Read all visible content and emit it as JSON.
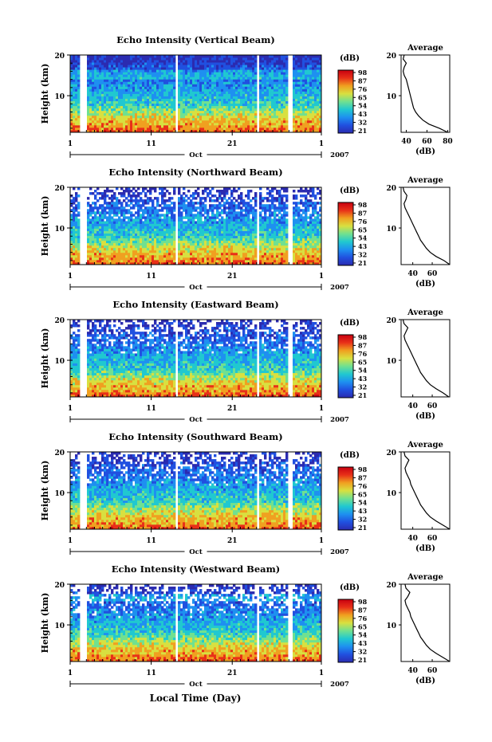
{
  "figure": {
    "xaxis_label": "Local Time (Day)",
    "month_label": "Oct",
    "year_label": "2007"
  },
  "colorbar": {
    "unit": "(dB)",
    "ticks": [
      "98",
      "87",
      "76",
      "65",
      "54",
      "43",
      "32",
      "21"
    ],
    "colors": [
      "#2b2bb0",
      "#2050e0",
      "#1e90f0",
      "#20c8d0",
      "#70e090",
      "#d8e040",
      "#f0a020",
      "#e83018",
      "#c80010"
    ]
  },
  "chart_data": [
    {
      "type": "heatmap",
      "title": "Echo Intensity (Vertical Beam)",
      "ylabel": "Height (km)",
      "xticks": [
        "1",
        "11",
        "21",
        "1"
      ],
      "yticks": [
        "20",
        "10"
      ],
      "xlim": [
        1,
        32
      ],
      "ylim": [
        1,
        20
      ],
      "colorbar_unit": "(dB)",
      "colorbar_ticks": [
        98,
        87,
        76,
        65,
        54,
        43,
        32,
        21
      ],
      "avg_profile": {
        "title": "Average",
        "xlabel": "(dB)",
        "xticks": [
          "40",
          "60",
          "80"
        ],
        "xlim": [
          35,
          82
        ],
        "height_km": [
          1,
          2,
          3,
          4,
          5,
          6,
          7,
          8,
          9,
          10,
          11,
          12,
          13,
          14,
          15,
          16,
          17,
          18,
          19,
          20
        ],
        "db": [
          80,
          72,
          62,
          56,
          52,
          49,
          47,
          46,
          45,
          44,
          43,
          42,
          41,
          40,
          38,
          37,
          38,
          40,
          37,
          38
        ]
      }
    },
    {
      "type": "heatmap",
      "title": "Echo Intensity (Northward Beam)",
      "ylabel": "Height (km)",
      "xticks": [
        "1",
        "11",
        "21",
        "1"
      ],
      "yticks": [
        "20",
        "10"
      ],
      "xlim": [
        1,
        32
      ],
      "ylim": [
        1,
        20
      ],
      "colorbar_unit": "(dB)",
      "colorbar_ticks": [
        98,
        87,
        76,
        65,
        54,
        43,
        32,
        21
      ],
      "avg_profile": {
        "title": "Average",
        "xlabel": "(dB)",
        "xticks": [
          "40",
          "60"
        ],
        "xlim": [
          28,
          78
        ],
        "height_km": [
          1,
          2,
          3,
          4,
          5,
          6,
          7,
          8,
          9,
          10,
          11,
          12,
          13,
          14,
          15,
          16,
          17,
          18,
          19,
          20
        ],
        "db": [
          78,
          72,
          64,
          58,
          54,
          51,
          48,
          46,
          44,
          42,
          40,
          38,
          36,
          34,
          32,
          31,
          33,
          34,
          31,
          30
        ]
      }
    },
    {
      "type": "heatmap",
      "title": "Echo Intensity (Eastward Beam)",
      "ylabel": "Height (km)",
      "xticks": [
        "1",
        "11",
        "21",
        "1"
      ],
      "yticks": [
        "20",
        "10"
      ],
      "xlim": [
        1,
        32
      ],
      "ylim": [
        1,
        20
      ],
      "colorbar_unit": "(dB)",
      "colorbar_ticks": [
        98,
        87,
        76,
        65,
        54,
        43,
        32,
        21
      ],
      "avg_profile": {
        "title": "Average",
        "xlabel": "(dB)",
        "xticks": [
          "40",
          "60"
        ],
        "xlim": [
          28,
          78
        ],
        "height_km": [
          1,
          2,
          3,
          4,
          5,
          6,
          7,
          8,
          9,
          10,
          11,
          12,
          13,
          14,
          15,
          16,
          17,
          18,
          19,
          20
        ],
        "db": [
          77,
          71,
          64,
          58,
          54,
          51,
          48,
          46,
          44,
          42,
          40,
          38,
          36,
          34,
          32,
          31,
          33,
          35,
          31,
          30
        ]
      }
    },
    {
      "type": "heatmap",
      "title": "Echo Intensity (Southward Beam)",
      "ylabel": "Height (km)",
      "xticks": [
        "1",
        "11",
        "21",
        "1"
      ],
      "yticks": [
        "20",
        "10"
      ],
      "xlim": [
        1,
        32
      ],
      "ylim": [
        1,
        20
      ],
      "colorbar_unit": "(dB)",
      "colorbar_ticks": [
        98,
        87,
        76,
        65,
        54,
        43,
        32,
        21
      ],
      "avg_profile": {
        "title": "Average",
        "xlabel": "(dB)",
        "xticks": [
          "40",
          "60"
        ],
        "xlim": [
          28,
          78
        ],
        "height_km": [
          1,
          2,
          3,
          4,
          5,
          6,
          7,
          8,
          9,
          10,
          11,
          12,
          13,
          14,
          15,
          16,
          17,
          18,
          19,
          20
        ],
        "db": [
          78,
          71,
          64,
          58,
          54,
          51,
          48,
          46,
          44,
          42,
          40,
          38,
          37,
          35,
          33,
          32,
          34,
          36,
          32,
          31
        ]
      }
    },
    {
      "type": "heatmap",
      "title": "Echo Intensity (Westward Beam)",
      "ylabel": "Height (km)",
      "xticks": [
        "1",
        "11",
        "21",
        "1"
      ],
      "yticks": [
        "20",
        "10"
      ],
      "xlim": [
        1,
        32
      ],
      "ylim": [
        1,
        20
      ],
      "colorbar_unit": "(dB)",
      "colorbar_ticks": [
        98,
        87,
        76,
        65,
        54,
        43,
        32,
        21
      ],
      "avg_profile": {
        "title": "Average",
        "xlabel": "(dB)",
        "xticks": [
          "40",
          "60"
        ],
        "xlim": [
          28,
          78
        ],
        "height_km": [
          1,
          2,
          3,
          4,
          5,
          6,
          7,
          8,
          9,
          10,
          11,
          12,
          13,
          14,
          15,
          16,
          17,
          18,
          19,
          20
        ],
        "db": [
          78,
          71,
          64,
          58,
          54,
          51,
          48,
          46,
          44,
          42,
          40,
          38,
          37,
          35,
          33,
          32,
          35,
          37,
          33,
          32
        ]
      }
    }
  ]
}
